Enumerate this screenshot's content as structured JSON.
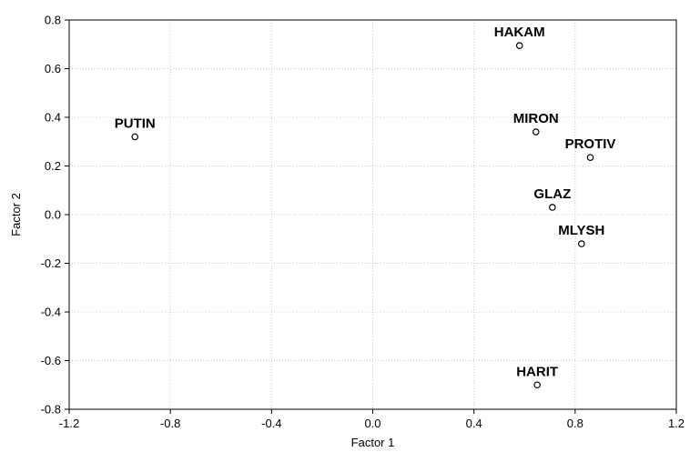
{
  "chart_data": {
    "type": "scatter",
    "xlabel": "Factor 1",
    "ylabel": "Factor 2",
    "xlim": [
      -1.2,
      1.2
    ],
    "ylim": [
      -0.8,
      0.8
    ],
    "xticks": [
      -1.2,
      -0.8,
      -0.4,
      0.0,
      0.4,
      0.8,
      1.2
    ],
    "yticks": [
      -0.8,
      -0.6,
      -0.4,
      -0.2,
      0.0,
      0.2,
      0.4,
      0.6,
      0.8
    ],
    "xtick_labels": [
      "-1.2",
      "-0.8",
      "-0.4",
      "0.0",
      "0.4",
      "0.8",
      "1.2"
    ],
    "ytick_labels": [
      "-0.8",
      "-0.6",
      "-0.4",
      "-0.2",
      "0.0",
      "0.2",
      "0.4",
      "0.6",
      "0.8"
    ],
    "grid": true,
    "points": [
      {
        "label": "PUTIN",
        "x": -0.94,
        "y": 0.32
      },
      {
        "label": "HAKAM",
        "x": 0.58,
        "y": 0.695
      },
      {
        "label": "MIRON",
        "x": 0.645,
        "y": 0.34
      },
      {
        "label": "PROTIV",
        "x": 0.86,
        "y": 0.235
      },
      {
        "label": "GLAZ",
        "x": 0.71,
        "y": 0.03
      },
      {
        "label": "MLYSH",
        "x": 0.825,
        "y": -0.12
      },
      {
        "label": "HARIT",
        "x": 0.65,
        "y": -0.7
      }
    ],
    "colors": {
      "marker_fill": "#ffffff",
      "marker_stroke": "#000000",
      "grid": "#c8c8c8"
    }
  }
}
